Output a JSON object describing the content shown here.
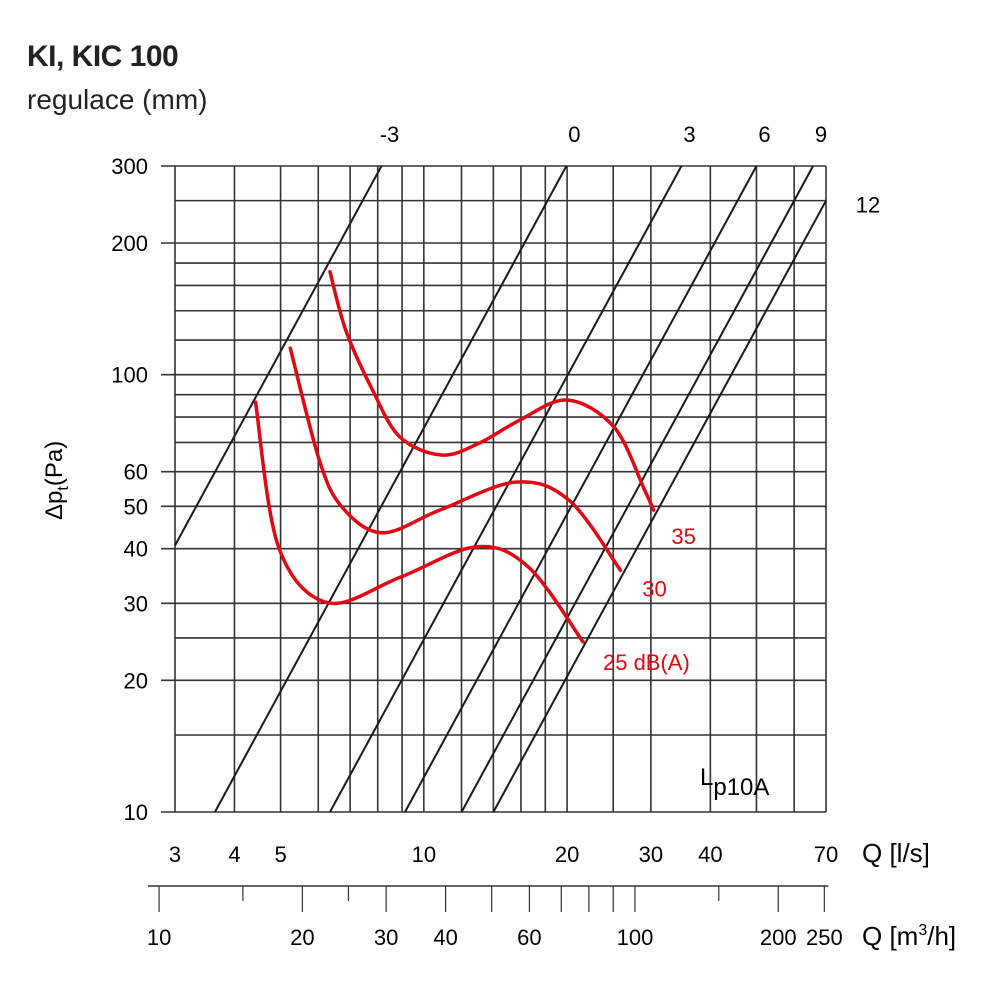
{
  "header": {
    "title": "KI, KIC 100",
    "subtitle": "regulace (mm)"
  },
  "chart_data": {
    "type": "line",
    "title": "KI, KIC 100",
    "subtitle": "regulace (mm)",
    "xlabel": "Q [l/s]",
    "x2label": "Q [m³/h]",
    "ylabel": "Δp",
    "ylabel_sub": "t",
    "ylabel_unit": "(Pa)",
    "x_scale": "log",
    "y_scale": "log",
    "xlim": [
      3,
      70
    ],
    "ylim": [
      10,
      300
    ],
    "grid": true,
    "x_ticks": [
      3,
      4,
      5,
      10,
      20,
      30,
      40,
      70
    ],
    "x_grid": [
      3,
      4,
      5,
      6,
      7,
      8,
      9,
      10,
      12,
      14,
      16,
      18,
      20,
      25,
      30,
      40,
      50,
      60,
      70
    ],
    "x2_ticks_labeled": [
      10,
      20,
      30,
      40,
      60,
      100,
      200,
      250
    ],
    "x2_ticks_major": [
      10,
      20,
      30,
      40,
      50,
      60,
      70,
      80,
      90,
      100,
      200,
      250
    ],
    "x2_ticks_minor": [
      15,
      25,
      150
    ],
    "y_ticks": [
      10,
      20,
      30,
      40,
      50,
      60,
      100,
      200,
      300
    ],
    "y_grid": [
      10,
      15,
      20,
      25,
      30,
      40,
      50,
      60,
      70,
      80,
      90,
      100,
      120,
      140,
      160,
      180,
      200,
      250,
      300
    ],
    "regulation_lines_title": "regulace (mm)",
    "regulation_lines": [
      {
        "label": "-3",
        "k": 4.52
      },
      {
        "label": "0",
        "k": 0.755
      },
      {
        "label": "3",
        "k": 0.248
      },
      {
        "label": "6",
        "k": 0.12
      },
      {
        "label": "9",
        "k": 0.0694
      },
      {
        "label": "12",
        "k": 0.051
      }
    ],
    "noise_series_title": "Lp10A",
    "noise_series_color": "#e30613",
    "series": [
      {
        "name": "35",
        "label": "35",
        "points": [
          [
            6.35,
            172
          ],
          [
            6.86,
            126
          ],
          [
            7.81,
            92
          ],
          [
            8.91,
            72
          ],
          [
            10.9,
            65.5
          ],
          [
            13.1,
            69.8
          ],
          [
            15.9,
            78.7
          ],
          [
            20.0,
            87.5
          ],
          [
            25.1,
            75.9
          ],
          [
            29.1,
            54.5
          ],
          [
            30.4,
            49
          ]
        ]
      },
      {
        "name": "30",
        "label": "30",
        "points": [
          [
            5.24,
            115
          ],
          [
            6.03,
            63.8
          ],
          [
            6.73,
            49.8
          ],
          [
            8.17,
            43.5
          ],
          [
            10.8,
            49
          ],
          [
            15.6,
            56.8
          ],
          [
            20.2,
            51.6
          ],
          [
            25.9,
            35.7
          ]
        ]
      },
      {
        "name": "25",
        "label": "25 dB(A)",
        "points": [
          [
            4.43,
            86.5
          ],
          [
            4.95,
            40.4
          ],
          [
            6.28,
            30.1
          ],
          [
            8.91,
            34.4
          ],
          [
            12.9,
            40.4
          ],
          [
            16.6,
            36.3
          ],
          [
            21.6,
            24.5
          ]
        ]
      }
    ]
  }
}
